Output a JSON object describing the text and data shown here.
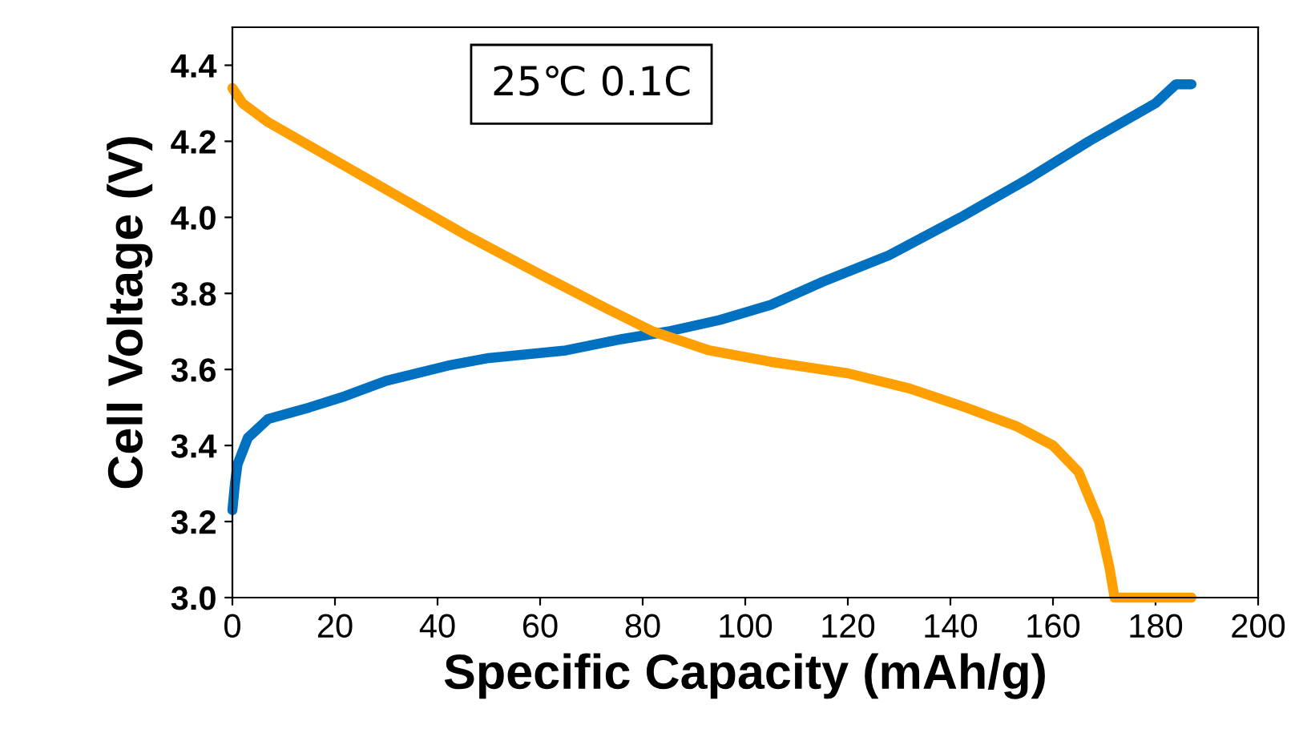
{
  "chart_data": {
    "type": "line",
    "xlabel": "Specific Capacity (mAh/g)",
    "ylabel": "Cell Voltage (V)",
    "annotations": [
      "25℃ 0.1C"
    ],
    "xlim": [
      0,
      200
    ],
    "xticks": [
      0,
      20,
      40,
      60,
      80,
      100,
      120,
      140,
      160,
      180,
      200
    ],
    "ylim": [
      3.0,
      4.5
    ],
    "yticks": [
      {
        "value": 3.0,
        "label": "3.0"
      },
      3.2,
      3.4,
      3.6,
      3.8,
      {
        "value": 4.0,
        "label": "4.0"
      },
      4.2,
      4.4
    ],
    "grid": false,
    "legend": false,
    "marker": "none",
    "line_style": "solid",
    "series": [
      {
        "color": "#0070c0",
        "x": [
          0,
          0.5,
          1,
          3,
          7,
          15,
          22,
          30,
          42,
          50,
          65,
          76,
          85,
          95,
          105,
          115,
          128,
          142,
          155,
          167,
          180,
          184,
          187
        ],
        "values": [
          3.23,
          3.3,
          3.35,
          3.42,
          3.47,
          3.5,
          3.53,
          3.57,
          3.61,
          3.63,
          3.65,
          3.68,
          3.7,
          3.73,
          3.77,
          3.83,
          3.9,
          4.0,
          4.1,
          4.2,
          4.3,
          4.35,
          4.35
        ]
      },
      {
        "color": "#ffa000",
        "x": [
          0,
          2,
          7,
          20,
          33,
          46,
          60,
          73,
          82,
          93,
          105,
          120,
          132,
          143,
          153,
          160,
          165,
          169,
          171,
          172,
          187
        ],
        "values": [
          4.34,
          4.3,
          4.25,
          4.15,
          4.05,
          3.95,
          3.85,
          3.76,
          3.7,
          3.65,
          3.62,
          3.59,
          3.55,
          3.5,
          3.45,
          3.4,
          3.33,
          3.2,
          3.08,
          3.0,
          3.0
        ]
      }
    ]
  }
}
